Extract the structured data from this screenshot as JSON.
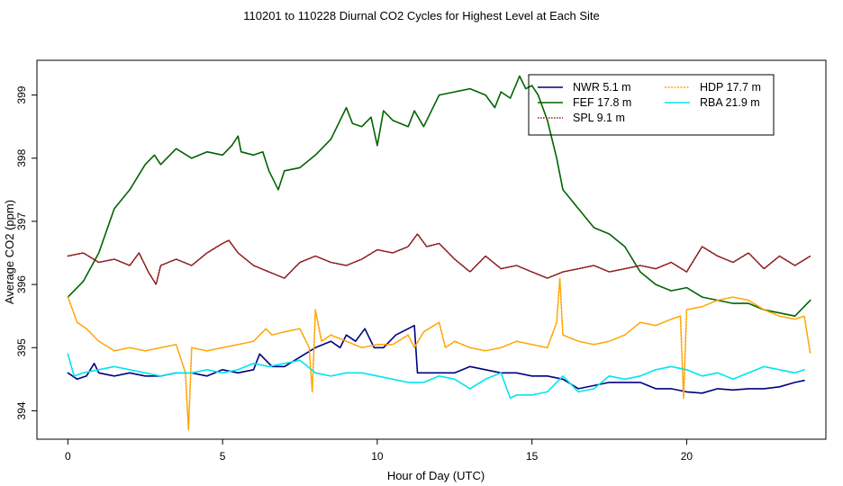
{
  "chart_data": {
    "type": "line",
    "title": "110201  to  110228 Diurnal CO2 Cycles for Highest Level at Each Site",
    "xlabel": "Hour of Day (UTC)",
    "ylabel": "Average CO2 (ppm)",
    "xlim": [
      -1,
      24.5
    ],
    "ylim": [
      393.55,
      399.55
    ],
    "xticks": [
      0,
      5,
      10,
      15,
      20
    ],
    "yticks": [
      394,
      395,
      396,
      397,
      398,
      399
    ],
    "grid": false,
    "legend_position": "top-right",
    "series": [
      {
        "name": "NWR   5.1 m",
        "color": "#00007f",
        "dash": "",
        "x": [
          0,
          0.3,
          0.6,
          0.85,
          1.0,
          1.5,
          2.0,
          2.5,
          3.0,
          3.5,
          4.0,
          4.5,
          5.0,
          5.5,
          6.0,
          6.2,
          6.6,
          7.0,
          7.5,
          8.0,
          8.5,
          8.8,
          9.0,
          9.3,
          9.6,
          9.9,
          10.2,
          10.6,
          11.0,
          11.2,
          11.3,
          11.5,
          12.0,
          12.5,
          13.0,
          13.5,
          14.0,
          14.5,
          15.0,
          15.5,
          16.0,
          16.5,
          17.0,
          17.5,
          18.0,
          18.5,
          19.0,
          19.5,
          20.0,
          20.5,
          21.0,
          21.5,
          22.0,
          22.5,
          23.0,
          23.5,
          23.8
        ],
        "y": [
          394.6,
          394.5,
          394.55,
          394.75,
          394.6,
          394.55,
          394.6,
          394.55,
          394.55,
          394.6,
          394.6,
          394.55,
          394.65,
          394.6,
          394.65,
          394.9,
          394.7,
          394.7,
          394.85,
          395.0,
          395.1,
          395.0,
          395.2,
          395.1,
          395.3,
          395.0,
          395.0,
          395.2,
          395.3,
          395.35,
          394.6,
          394.6,
          394.6,
          394.6,
          394.7,
          394.65,
          394.6,
          394.6,
          394.55,
          394.55,
          394.5,
          394.35,
          394.4,
          394.45,
          394.45,
          394.45,
          394.35,
          394.35,
          394.3,
          394.28,
          394.35,
          394.33,
          394.35,
          394.35,
          394.38,
          394.45,
          394.48
        ]
      },
      {
        "name": "FEF  17.8 m",
        "color": "#006400",
        "dash": "",
        "x": [
          0,
          0.5,
          1.0,
          1.5,
          2.0,
          2.5,
          2.8,
          3.0,
          3.5,
          4.0,
          4.5,
          5.0,
          5.3,
          5.5,
          5.6,
          6.0,
          6.3,
          6.5,
          6.8,
          7.0,
          7.5,
          8.0,
          8.5,
          9.0,
          9.2,
          9.5,
          9.8,
          10.0,
          10.2,
          10.5,
          11.0,
          11.2,
          11.5,
          12.0,
          12.5,
          13.0,
          13.5,
          13.8,
          14.0,
          14.3,
          14.6,
          14.8,
          15.0,
          15.2,
          15.5,
          15.8,
          16.0,
          16.5,
          17.0,
          17.5,
          18.0,
          18.5,
          19.0,
          19.5,
          20.0,
          20.5,
          21.0,
          21.5,
          22.0,
          22.5,
          23.0,
          23.5,
          24.0
        ],
        "y": [
          395.8,
          396.05,
          396.5,
          397.2,
          397.5,
          397.9,
          398.05,
          397.9,
          398.15,
          398.0,
          398.1,
          398.05,
          398.2,
          398.35,
          398.1,
          398.05,
          398.1,
          397.8,
          397.5,
          397.8,
          397.85,
          398.05,
          398.3,
          398.8,
          398.55,
          398.5,
          398.65,
          398.2,
          398.75,
          398.6,
          398.5,
          398.75,
          398.5,
          399.0,
          399.05,
          399.1,
          399.0,
          398.8,
          399.05,
          398.95,
          399.3,
          399.1,
          399.15,
          399.0,
          398.6,
          398.0,
          397.5,
          397.2,
          396.9,
          396.8,
          396.6,
          396.2,
          396.0,
          395.9,
          395.95,
          395.8,
          395.75,
          395.7,
          395.7,
          395.6,
          395.55,
          395.5,
          395.75
        ]
      },
      {
        "name": "SPL   9.1 m",
        "color": "#8b1a1a",
        "dash": "1.5 1.5",
        "x": [
          0,
          0.5,
          1.0,
          1.5,
          2.0,
          2.3,
          2.6,
          2.85,
          3.0,
          3.5,
          4.0,
          4.5,
          5.0,
          5.2,
          5.5,
          6.0,
          6.5,
          7.0,
          7.5,
          8.0,
          8.5,
          9.0,
          9.5,
          10.0,
          10.5,
          11.0,
          11.3,
          11.6,
          12.0,
          12.5,
          13.0,
          13.5,
          14.0,
          14.5,
          15.0,
          15.5,
          16.0,
          16.5,
          17.0,
          17.5,
          18.0,
          18.5,
          19.0,
          19.5,
          20.0,
          20.5,
          21.0,
          21.5,
          22.0,
          22.5,
          23.0,
          23.5,
          24.0
        ],
        "y": [
          396.45,
          396.5,
          396.35,
          396.4,
          396.3,
          396.5,
          396.2,
          396.0,
          396.3,
          396.4,
          396.3,
          396.5,
          396.65,
          396.7,
          396.5,
          396.3,
          396.2,
          396.1,
          396.35,
          396.45,
          396.35,
          396.3,
          396.4,
          396.55,
          396.5,
          396.6,
          396.8,
          396.6,
          396.65,
          396.4,
          396.2,
          396.45,
          396.25,
          396.3,
          396.2,
          396.1,
          396.2,
          396.25,
          396.3,
          396.2,
          396.25,
          396.3,
          396.25,
          396.35,
          396.2,
          396.6,
          396.45,
          396.35,
          396.5,
          396.25,
          396.45,
          396.3,
          396.45
        ]
      },
      {
        "name": "HDP  17.7 m",
        "color": "#ffa500",
        "dash": "2 1.5",
        "x": [
          0,
          0.3,
          0.6,
          1.0,
          1.5,
          2.0,
          2.5,
          3.0,
          3.5,
          3.8,
          3.9,
          4.0,
          4.5,
          5.0,
          5.5,
          6.0,
          6.4,
          6.6,
          7.0,
          7.5,
          7.8,
          7.9,
          8.0,
          8.2,
          8.5,
          9.0,
          9.5,
          10.0,
          10.5,
          11.0,
          11.2,
          11.5,
          12.0,
          12.2,
          12.5,
          13.0,
          13.5,
          14.0,
          14.5,
          15.0,
          15.5,
          15.8,
          15.9,
          16.0,
          16.5,
          17.0,
          17.5,
          18.0,
          18.5,
          19.0,
          19.5,
          19.8,
          19.9,
          20.0,
          20.5,
          21.0,
          21.5,
          22.0,
          22.5,
          23.0,
          23.5,
          23.8,
          24.0
        ],
        "y": [
          395.8,
          395.4,
          395.3,
          395.1,
          394.95,
          395.0,
          394.95,
          395.0,
          395.05,
          394.6,
          393.7,
          395.0,
          394.95,
          395.0,
          395.05,
          395.1,
          395.3,
          395.2,
          395.25,
          395.3,
          395.0,
          394.3,
          395.6,
          395.1,
          395.2,
          395.1,
          395.0,
          395.05,
          395.05,
          395.2,
          395.0,
          395.25,
          395.4,
          395.0,
          395.1,
          395.0,
          394.95,
          395.0,
          395.1,
          395.05,
          395.0,
          395.4,
          396.1,
          395.2,
          395.1,
          395.05,
          395.1,
          395.2,
          395.4,
          395.35,
          395.45,
          395.5,
          394.2,
          395.6,
          395.65,
          395.75,
          395.8,
          395.75,
          395.6,
          395.5,
          395.45,
          395.5,
          394.9
        ]
      },
      {
        "name": "RBA  21.9 m",
        "color": "#00e5ee",
        "dash": "",
        "x": [
          0,
          0.2,
          0.5,
          1.0,
          1.5,
          2.0,
          2.5,
          3.0,
          3.5,
          4.0,
          4.5,
          5.0,
          5.5,
          6.0,
          6.5,
          7.0,
          7.5,
          8.0,
          8.5,
          9.0,
          9.5,
          10.0,
          10.5,
          11.0,
          11.5,
          12.0,
          12.5,
          13.0,
          13.5,
          14.0,
          14.3,
          14.5,
          15.0,
          15.5,
          16.0,
          16.5,
          17.0,
          17.5,
          18.0,
          18.5,
          19.0,
          19.5,
          20.0,
          20.5,
          21.0,
          21.5,
          22.0,
          22.5,
          23.0,
          23.5,
          23.8
        ],
        "y": [
          394.9,
          394.55,
          394.6,
          394.65,
          394.7,
          394.65,
          394.6,
          394.55,
          394.6,
          394.6,
          394.65,
          394.6,
          394.65,
          394.75,
          394.7,
          394.75,
          394.8,
          394.6,
          394.55,
          394.6,
          394.6,
          394.55,
          394.5,
          394.45,
          394.45,
          394.55,
          394.5,
          394.35,
          394.5,
          394.6,
          394.2,
          394.25,
          394.25,
          394.3,
          394.55,
          394.3,
          394.35,
          394.55,
          394.5,
          394.55,
          394.65,
          394.7,
          394.65,
          394.55,
          394.6,
          394.5,
          394.6,
          394.7,
          394.65,
          394.6,
          394.65
        ]
      }
    ]
  }
}
